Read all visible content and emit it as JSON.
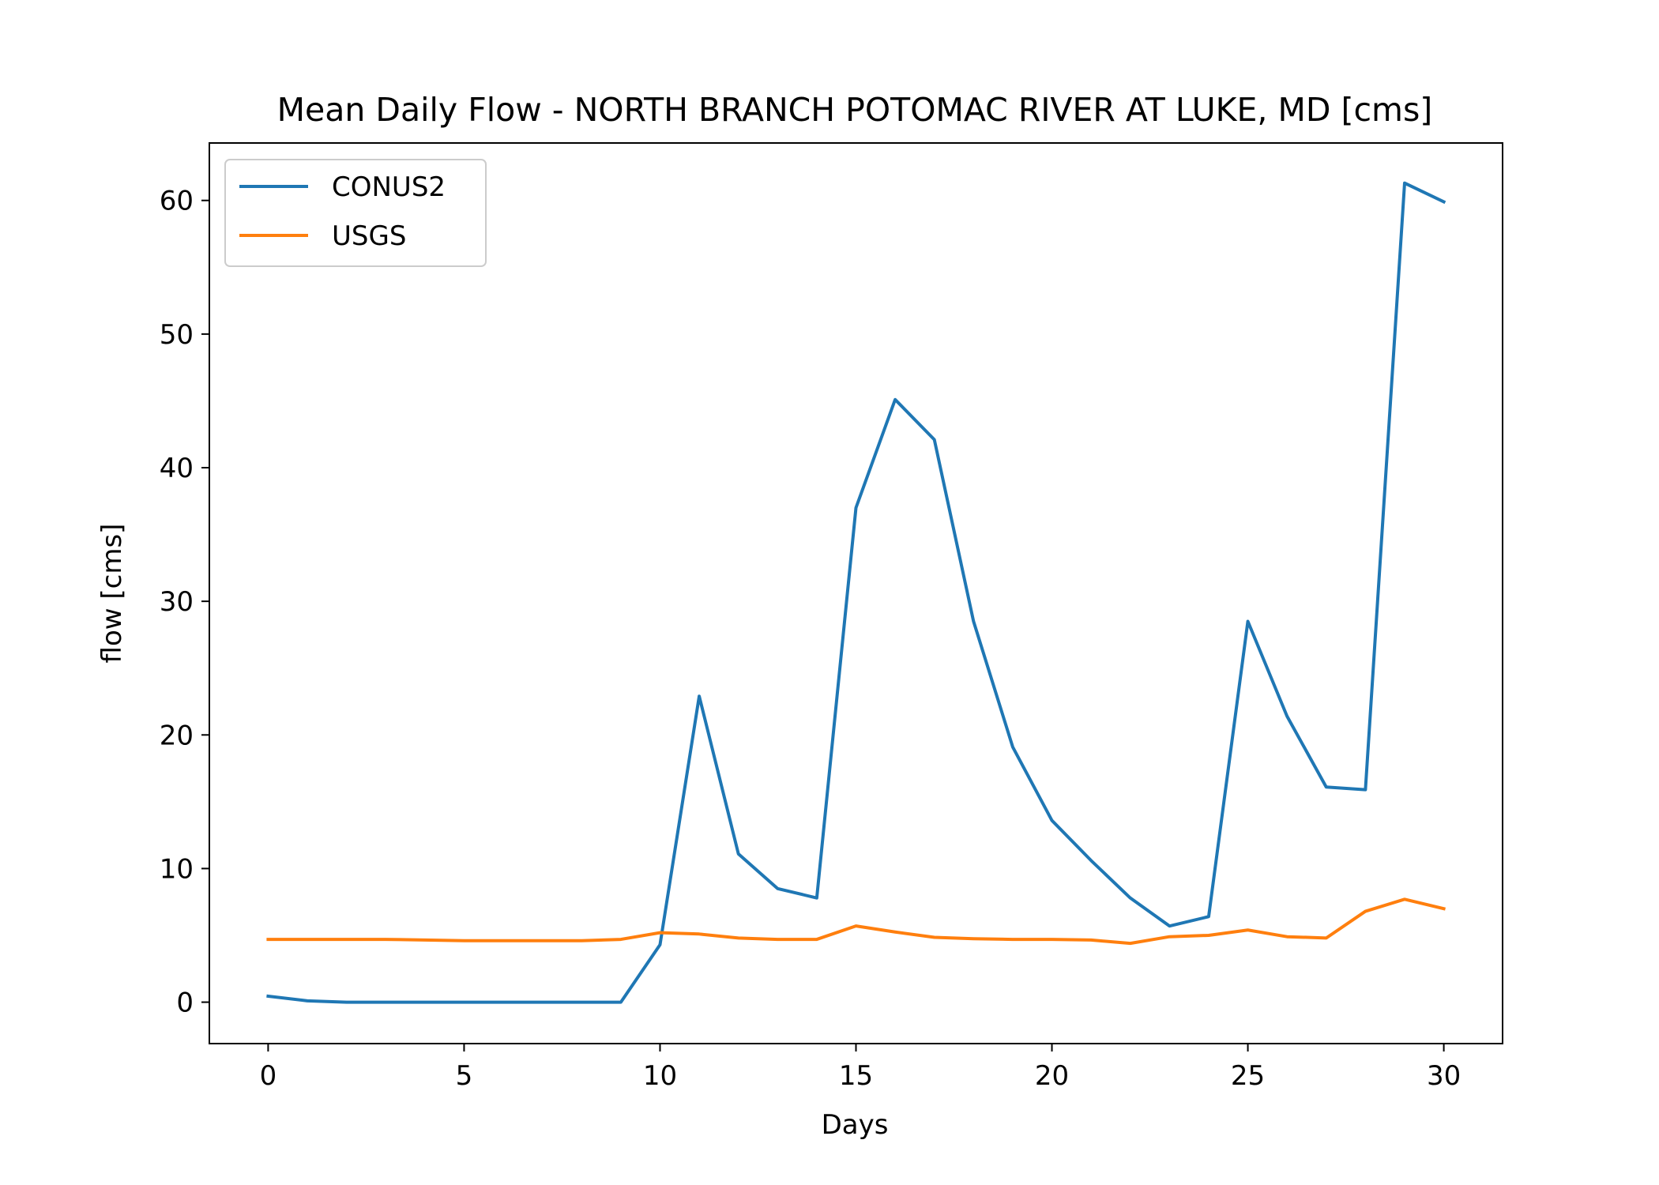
{
  "chart_data": {
    "type": "line",
    "title": "Mean Daily Flow - NORTH BRANCH POTOMAC RIVER AT LUKE, MD [cms]",
    "xlabel": "Days",
    "ylabel": "flow [cms]",
    "xlim": [
      -1.5,
      31.5
    ],
    "ylim": [
      -3.1,
      64.3
    ],
    "xticks": [
      0,
      5,
      10,
      15,
      20,
      25,
      30
    ],
    "yticks": [
      0,
      10,
      20,
      30,
      40,
      50,
      60
    ],
    "xtick_labels": [
      "0",
      "5",
      "10",
      "15",
      "20",
      "25",
      "30"
    ],
    "ytick_labels": [
      "0",
      "10",
      "20",
      "30",
      "40",
      "50",
      "60"
    ],
    "grid": false,
    "legend": {
      "position": "upper-left"
    },
    "x": [
      0,
      1,
      2,
      3,
      4,
      5,
      6,
      7,
      8,
      9,
      10,
      11,
      12,
      13,
      14,
      15,
      16,
      17,
      18,
      19,
      20,
      21,
      22,
      23,
      24,
      25,
      26,
      27,
      28,
      29,
      30
    ],
    "series": [
      {
        "name": "CONUS2",
        "color": "#1f77b4",
        "values": [
          0.45,
          0.1,
          0.0,
          0.0,
          0.0,
          0.0,
          0.0,
          0.0,
          0.0,
          0.0,
          4.3,
          22.9,
          11.1,
          8.5,
          7.8,
          37.0,
          45.1,
          42.1,
          28.5,
          19.1,
          13.6,
          10.6,
          7.8,
          5.7,
          6.4,
          28.5,
          21.4,
          16.1,
          15.9,
          61.3,
          59.9
        ]
      },
      {
        "name": "USGS",
        "color": "#ff7f0e",
        "values": [
          4.7,
          4.7,
          4.7,
          4.7,
          4.65,
          4.6,
          4.6,
          4.6,
          4.6,
          4.7,
          5.2,
          5.1,
          4.8,
          4.7,
          4.7,
          5.7,
          5.25,
          4.85,
          4.75,
          4.7,
          4.7,
          4.65,
          4.4,
          4.9,
          5.0,
          5.4,
          4.9,
          4.8,
          6.8,
          7.7,
          7.0
        ]
      }
    ]
  }
}
